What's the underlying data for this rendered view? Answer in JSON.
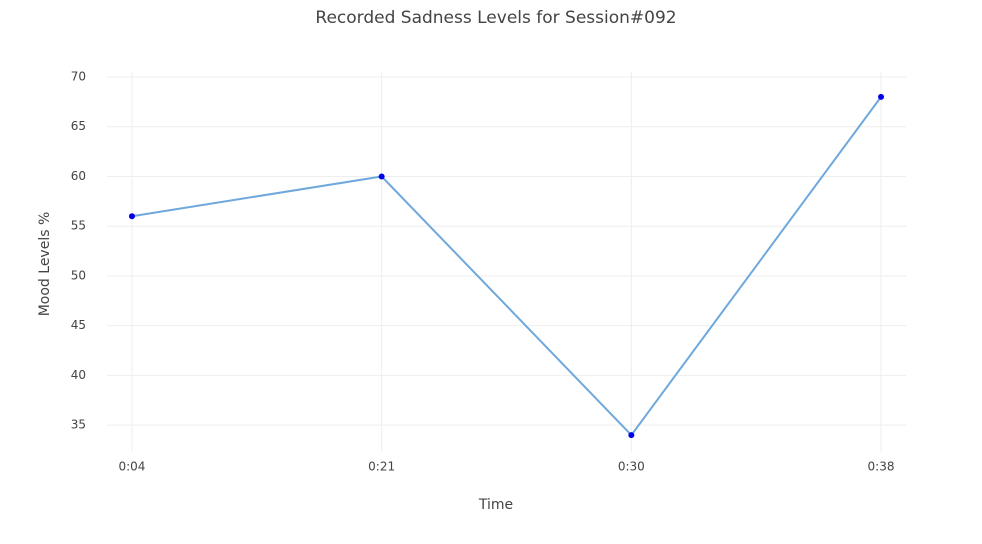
{
  "chart_data": {
    "type": "line",
    "title": "Recorded Sadness Levels for Session#092",
    "x_label": "Time",
    "y_label": "Mood Levels %",
    "categories": [
      "0:04",
      "0:21",
      "0:30",
      "0:38"
    ],
    "values": [
      56,
      60,
      34,
      68
    ],
    "color": "#6fa8dc",
    "marker_color": "#0000ee",
    "ylim": [
      32.3,
      70
    ],
    "yticks": [
      35,
      40,
      45,
      50,
      55,
      60,
      65,
      70
    ],
    "grid": true
  }
}
